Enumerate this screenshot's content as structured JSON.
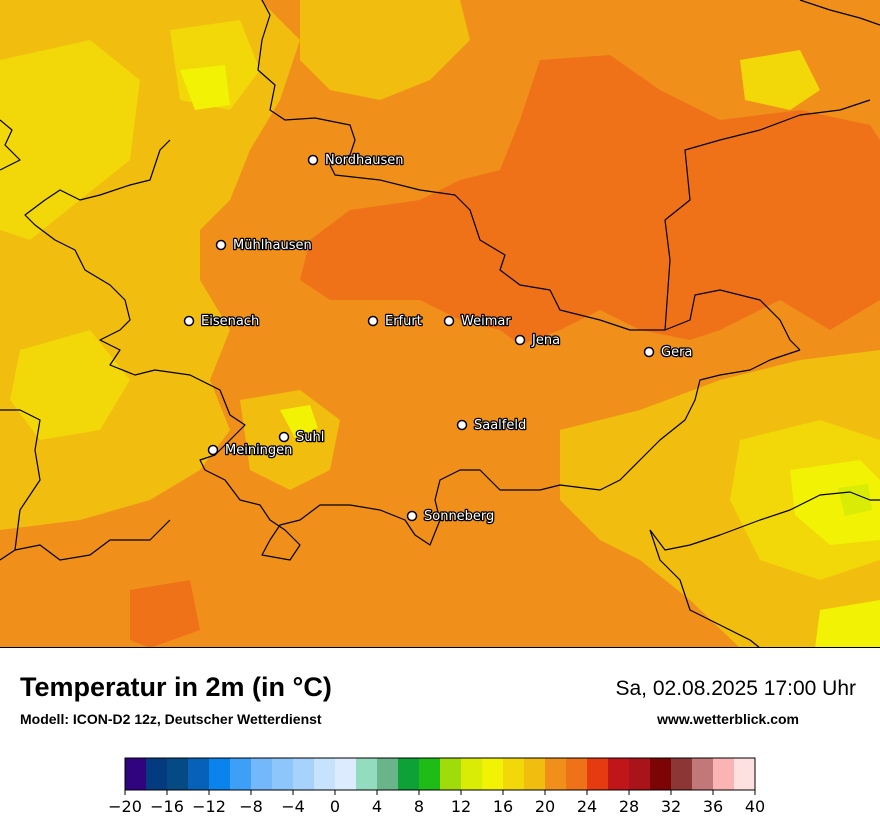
{
  "map": {
    "title": "Temperatur in 2m (in °C)",
    "model_info": "Modell: ICON-D2 12z, Deutscher Wetterdienst",
    "datetime": "Sa, 02.08.2025 17:00 Uhr",
    "website": "www.wetterblick.com",
    "cities": [
      {
        "name": "Nordhausen"
      },
      {
        "name": "Mühlhausen"
      },
      {
        "name": "Eisenach"
      },
      {
        "name": "Erfurt"
      },
      {
        "name": "Weimar"
      },
      {
        "name": "Jena"
      },
      {
        "name": "Gera"
      },
      {
        "name": "Saalfeld"
      },
      {
        "name": "Suhl"
      },
      {
        "name": "Meiningen"
      },
      {
        "name": "Sonneberg"
      }
    ]
  },
  "legend": {
    "unit": "°C",
    "bins": [
      {
        "from": -20,
        "color": "#30047e"
      },
      {
        "from": -18,
        "color": "#043a80"
      },
      {
        "from": -16,
        "color": "#044a84"
      },
      {
        "from": -14,
        "color": "#0861b8"
      },
      {
        "from": -12,
        "color": "#0a84ec"
      },
      {
        "from": -10,
        "color": "#3d9ff8"
      },
      {
        "from": -8,
        "color": "#73b8fa"
      },
      {
        "from": -6,
        "color": "#8cc6fa"
      },
      {
        "from": -4,
        "color": "#a7d2fc"
      },
      {
        "from": -2,
        "color": "#c6e2fd"
      },
      {
        "from": 0,
        "color": "#dcebfd"
      },
      {
        "from": 2,
        "color": "#94dcc0"
      },
      {
        "from": 4,
        "color": "#6ab48a"
      },
      {
        "from": 6,
        "color": "#0ea137"
      },
      {
        "from": 8,
        "color": "#1fbc18"
      },
      {
        "from": 10,
        "color": "#a0db0a"
      },
      {
        "from": 12,
        "color": "#d8ec05"
      },
      {
        "from": 14,
        "color": "#f2f205"
      },
      {
        "from": 16,
        "color": "#f2d709"
      },
      {
        "from": 18,
        "color": "#f1bd0e"
      },
      {
        "from": 20,
        "color": "#f0901a"
      },
      {
        "from": 22,
        "color": "#f07218"
      },
      {
        "from": 24,
        "color": "#e63a10"
      },
      {
        "from": 26,
        "color": "#c0161a"
      },
      {
        "from": 28,
        "color": "#a9141a"
      },
      {
        "from": 30,
        "color": "#7c0404"
      },
      {
        "from": 32,
        "color": "#8c3636"
      },
      {
        "from": 34,
        "color": "#c27878"
      },
      {
        "from": 36,
        "color": "#fbb4b4"
      },
      {
        "from": 38,
        "color": "#fde0e0"
      }
    ],
    "ticks": [
      "−20",
      "−16",
      "−12",
      "−8",
      "−4",
      "0",
      "4",
      "8",
      "12",
      "16",
      "20",
      "24",
      "28",
      "32",
      "36",
      "40"
    ]
  }
}
